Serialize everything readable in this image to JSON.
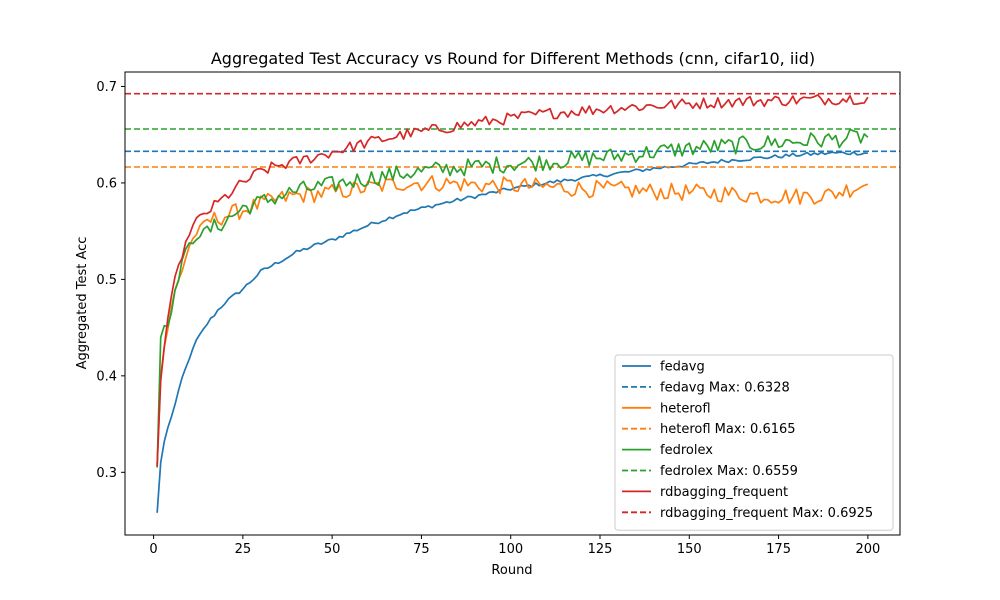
{
  "chart_data": {
    "type": "line",
    "title": "Aggregated Test Accuracy vs Round for Different Methods (cnn, cifar10, iid)",
    "xlabel": "Round",
    "ylabel": "Aggregated Test Acc",
    "xlim": [
      -8,
      209
    ],
    "ylim": [
      0.235,
      0.715
    ],
    "x_ticks": [
      0,
      25,
      50,
      75,
      100,
      125,
      150,
      175,
      200
    ],
    "y_ticks": [
      0.3,
      0.4,
      0.5,
      0.6,
      0.7
    ],
    "x_tick_labels": [
      "0",
      "25",
      "50",
      "75",
      "100",
      "125",
      "150",
      "175",
      "200"
    ],
    "y_tick_labels": [
      "0.3",
      "0.4",
      "0.5",
      "0.6",
      "0.7"
    ],
    "rounds": [
      1,
      200
    ],
    "grid": false,
    "legend_position": "lower-right",
    "series": [
      {
        "name": "fedavg",
        "color": "#1f77b4",
        "key_points": [
          [
            1,
            0.258
          ],
          [
            2,
            0.31
          ],
          [
            3,
            0.332
          ],
          [
            4,
            0.346
          ],
          [
            6,
            0.37
          ],
          [
            8,
            0.398
          ],
          [
            10,
            0.418
          ],
          [
            12,
            0.437
          ],
          [
            15,
            0.454
          ],
          [
            18,
            0.468
          ],
          [
            20,
            0.476
          ],
          [
            25,
            0.49
          ],
          [
            30,
            0.508
          ],
          [
            35,
            0.518
          ],
          [
            40,
            0.528
          ],
          [
            45,
            0.535
          ],
          [
            50,
            0.541
          ],
          [
            60,
            0.556
          ],
          [
            70,
            0.569
          ],
          [
            80,
            0.578
          ],
          [
            90,
            0.586
          ],
          [
            100,
            0.594
          ],
          [
            110,
            0.6
          ],
          [
            120,
            0.605
          ],
          [
            130,
            0.61
          ],
          [
            140,
            0.615
          ],
          [
            150,
            0.619
          ],
          [
            160,
            0.623
          ],
          [
            170,
            0.626
          ],
          [
            180,
            0.629
          ],
          [
            190,
            0.631
          ],
          [
            200,
            0.631
          ]
        ],
        "noise": 0.002
      },
      {
        "name": "fedavg Max: 0.6328",
        "color": "#1f77b4",
        "dashed": true,
        "value": 0.6328
      },
      {
        "name": "heterofl",
        "color": "#ff7f0e",
        "key_points": [
          [
            1,
            0.308
          ],
          [
            2,
            0.4
          ],
          [
            3,
            0.43
          ],
          [
            4,
            0.45
          ],
          [
            6,
            0.488
          ],
          [
            8,
            0.51
          ],
          [
            10,
            0.535
          ],
          [
            12,
            0.548
          ],
          [
            15,
            0.56
          ],
          [
            20,
            0.566
          ],
          [
            25,
            0.572
          ],
          [
            30,
            0.578
          ],
          [
            35,
            0.583
          ],
          [
            40,
            0.587
          ],
          [
            50,
            0.59
          ],
          [
            60,
            0.595
          ],
          [
            70,
            0.6
          ],
          [
            80,
            0.6
          ],
          [
            90,
            0.598
          ],
          [
            100,
            0.597
          ],
          [
            110,
            0.596
          ],
          [
            120,
            0.594
          ],
          [
            130,
            0.593
          ],
          [
            140,
            0.591
          ],
          [
            150,
            0.59
          ],
          [
            160,
            0.589
          ],
          [
            170,
            0.587
          ],
          [
            180,
            0.586
          ],
          [
            190,
            0.588
          ],
          [
            200,
            0.6
          ]
        ],
        "noise": 0.009
      },
      {
        "name": "heterofl Max: 0.6165",
        "color": "#ff7f0e",
        "dashed": true,
        "value": 0.6165
      },
      {
        "name": "fedrolex",
        "color": "#2ca02c",
        "key_points": [
          [
            1,
            0.305
          ],
          [
            2,
            0.44
          ],
          [
            3,
            0.452
          ],
          [
            4,
            0.455
          ],
          [
            6,
            0.485
          ],
          [
            8,
            0.52
          ],
          [
            10,
            0.535
          ],
          [
            12,
            0.545
          ],
          [
            15,
            0.55
          ],
          [
            20,
            0.56
          ],
          [
            25,
            0.574
          ],
          [
            30,
            0.58
          ],
          [
            35,
            0.586
          ],
          [
            40,
            0.592
          ],
          [
            50,
            0.598
          ],
          [
            60,
            0.605
          ],
          [
            70,
            0.61
          ],
          [
            80,
            0.614
          ],
          [
            90,
            0.617
          ],
          [
            100,
            0.62
          ],
          [
            110,
            0.622
          ],
          [
            120,
            0.625
          ],
          [
            130,
            0.628
          ],
          [
            140,
            0.632
          ],
          [
            150,
            0.636
          ],
          [
            160,
            0.638
          ],
          [
            170,
            0.641
          ],
          [
            180,
            0.643
          ],
          [
            190,
            0.645
          ],
          [
            200,
            0.648
          ]
        ],
        "noise": 0.009
      },
      {
        "name": "fedrolex Max: 0.6559",
        "color": "#2ca02c",
        "dashed": true,
        "value": 0.6559
      },
      {
        "name": "rdbagging_frequent",
        "color": "#d62728",
        "key_points": [
          [
            1,
            0.306
          ],
          [
            2,
            0.395
          ],
          [
            3,
            0.43
          ],
          [
            4,
            0.46
          ],
          [
            6,
            0.5
          ],
          [
            8,
            0.525
          ],
          [
            10,
            0.548
          ],
          [
            12,
            0.562
          ],
          [
            15,
            0.57
          ],
          [
            20,
            0.585
          ],
          [
            25,
            0.6
          ],
          [
            30,
            0.612
          ],
          [
            35,
            0.618
          ],
          [
            40,
            0.622
          ],
          [
            50,
            0.632
          ],
          [
            60,
            0.642
          ],
          [
            70,
            0.65
          ],
          [
            80,
            0.656
          ],
          [
            90,
            0.662
          ],
          [
            100,
            0.667
          ],
          [
            110,
            0.672
          ],
          [
            120,
            0.675
          ],
          [
            130,
            0.678
          ],
          [
            140,
            0.68
          ],
          [
            150,
            0.682
          ],
          [
            160,
            0.684
          ],
          [
            170,
            0.685
          ],
          [
            180,
            0.686
          ],
          [
            190,
            0.687
          ],
          [
            200,
            0.688
          ]
        ],
        "noise": 0.006
      },
      {
        "name": "rdbagging_frequent Max: 0.6925",
        "color": "#d62728",
        "dashed": true,
        "value": 0.6925
      }
    ]
  }
}
